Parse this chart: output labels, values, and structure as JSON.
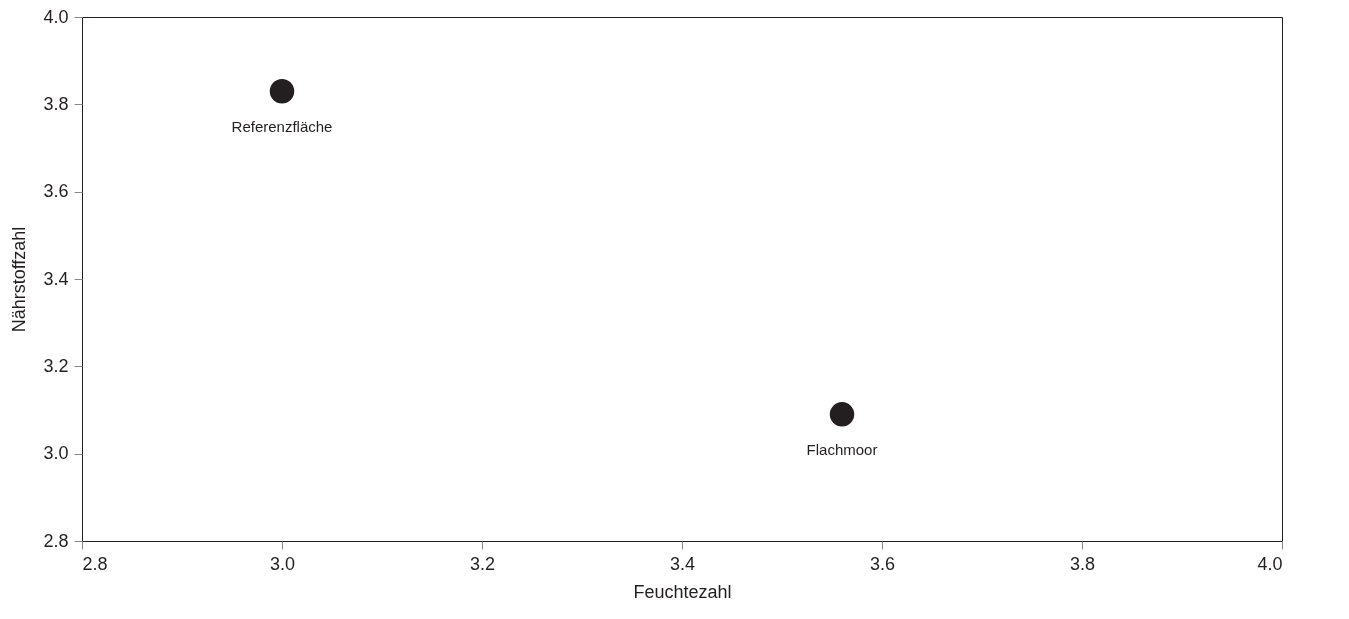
{
  "chart_data": {
    "type": "scatter",
    "xlabel": "Feuchtezahl",
    "ylabel": "Nährstoffzahl",
    "xlim": [
      2.8,
      4.0
    ],
    "xticks": [
      2.8,
      {
        "value": 3.0,
        "label": "3.0"
      },
      3.2,
      3.4,
      3.6,
      3.8,
      {
        "value": 4.0,
        "label": "4.0"
      }
    ],
    "ylim": [
      2.8,
      4.0
    ],
    "yticks": [
      2.8,
      {
        "value": 3.0,
        "label": "3.0"
      },
      3.2,
      3.4,
      3.6,
      3.8,
      {
        "value": 4.0,
        "label": "4.0"
      }
    ],
    "grid": false,
    "marker": "circle",
    "series": [
      {
        "name": "Referenzfläche",
        "color": "#231f20",
        "x": [
          3.0
        ],
        "values": [
          3.83
        ]
      },
      {
        "name": "Flachmoor",
        "color": "#231f20",
        "x": [
          3.56
        ],
        "values": [
          3.09
        ]
      }
    ]
  }
}
